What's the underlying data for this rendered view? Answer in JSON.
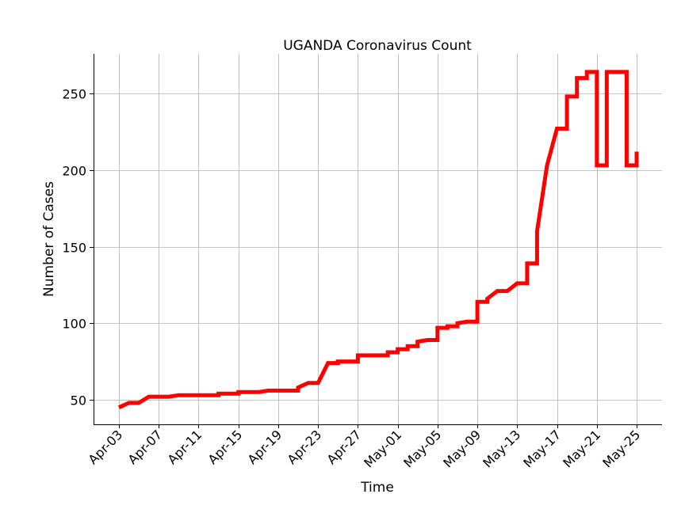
{
  "chart_data": {
    "type": "line",
    "title": "UGANDA Coronavirus Count",
    "xlabel": "Time",
    "ylabel": "Number of Cases",
    "x_ticks": [
      "Apr-03",
      "Apr-07",
      "Apr-11",
      "Apr-15",
      "Apr-19",
      "Apr-23",
      "Apr-27",
      "May-01",
      "May-05",
      "May-09",
      "May-13",
      "May-17",
      "May-21",
      "May-25"
    ],
    "y_ticks": [
      50,
      100,
      150,
      200,
      250
    ],
    "ylim": [
      34,
      276
    ],
    "xlim": [
      "2020-04-01",
      "2020-05-27"
    ],
    "grid": true,
    "series": [
      {
        "color": "#ff0000",
        "points": [
          [
            "2020-04-03 00:00",
            45
          ],
          [
            "2020-04-04 00:00",
            48
          ],
          [
            "2020-04-05 00:00",
            48
          ],
          [
            "2020-04-06 00:00",
            52
          ],
          [
            "2020-04-08 00:00",
            52
          ],
          [
            "2020-04-09 00:00",
            53
          ],
          [
            "2020-04-13 00:00",
            53
          ],
          [
            "2020-04-13 00:00",
            54
          ],
          [
            "2020-04-15 00:00",
            54
          ],
          [
            "2020-04-15 00:00",
            55
          ],
          [
            "2020-04-17 00:00",
            55
          ],
          [
            "2020-04-18 00:00",
            56
          ],
          [
            "2020-04-21 00:00",
            56
          ],
          [
            "2020-04-21 00:00",
            58
          ],
          [
            "2020-04-22 00:00",
            61
          ],
          [
            "2020-04-23 00:00",
            61
          ],
          [
            "2020-04-24 00:00",
            74
          ],
          [
            "2020-04-25 00:00",
            74
          ],
          [
            "2020-04-25 00:00",
            75
          ],
          [
            "2020-04-27 00:00",
            75
          ],
          [
            "2020-04-27 00:00",
            79
          ],
          [
            "2020-04-30 00:00",
            79
          ],
          [
            "2020-04-30 00:00",
            81
          ],
          [
            "2020-05-01 00:00",
            81
          ],
          [
            "2020-05-01 00:00",
            83
          ],
          [
            "2020-05-02 00:00",
            83
          ],
          [
            "2020-05-02 00:00",
            85
          ],
          [
            "2020-05-03 00:00",
            85
          ],
          [
            "2020-05-03 00:00",
            88
          ],
          [
            "2020-05-04 00:00",
            89
          ],
          [
            "2020-05-05 00:00",
            89
          ],
          [
            "2020-05-05 00:00",
            97
          ],
          [
            "2020-05-06 00:00",
            97
          ],
          [
            "2020-05-06 00:00",
            98
          ],
          [
            "2020-05-07 00:00",
            98
          ],
          [
            "2020-05-07 00:00",
            100
          ],
          [
            "2020-05-08 00:00",
            101
          ],
          [
            "2020-05-09 00:00",
            101
          ],
          [
            "2020-05-09 00:00",
            114
          ],
          [
            "2020-05-10 00:00",
            114
          ],
          [
            "2020-05-10 00:00",
            116
          ],
          [
            "2020-05-11 00:00",
            121
          ],
          [
            "2020-05-12 00:00",
            121
          ],
          [
            "2020-05-13 00:00",
            126
          ],
          [
            "2020-05-14 00:00",
            126
          ],
          [
            "2020-05-14 00:00",
            139
          ],
          [
            "2020-05-15 00:00",
            139
          ],
          [
            "2020-05-15 00:00",
            160
          ],
          [
            "2020-05-16 00:00",
            203
          ],
          [
            "2020-05-17 00:00",
            227
          ],
          [
            "2020-05-18 00:00",
            227
          ],
          [
            "2020-05-18 00:00",
            248
          ],
          [
            "2020-05-19 00:00",
            248
          ],
          [
            "2020-05-19 00:00",
            260
          ],
          [
            "2020-05-20 00:00",
            260
          ],
          [
            "2020-05-20 00:00",
            264
          ],
          [
            "2020-05-21 00:00",
            264
          ],
          [
            "2020-05-21 00:00",
            203
          ],
          [
            "2020-05-22 00:00",
            203
          ],
          [
            "2020-05-22 00:00",
            264
          ],
          [
            "2020-05-24 00:00",
            264
          ],
          [
            "2020-05-24 00:00",
            203
          ],
          [
            "2020-05-25 00:00",
            203
          ],
          [
            "2020-05-25 00:00",
            212
          ]
        ]
      }
    ]
  }
}
